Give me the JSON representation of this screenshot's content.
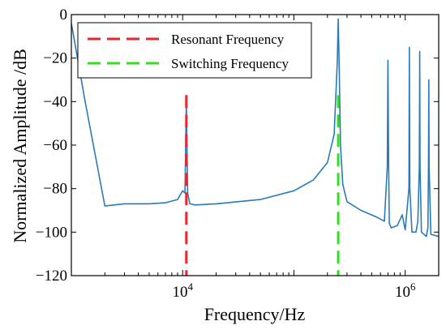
{
  "chart_data": {
    "type": "line",
    "title": "",
    "xlabel": "Frequency/Hz",
    "ylabel": "Normalized Amplitude /dB",
    "xscale": "log",
    "xlim": [
      1000,
      2000000
    ],
    "ylim": [
      -120,
      0
    ],
    "x_ticks": [
      {
        "value": 10000,
        "base": "10",
        "exp": "4"
      },
      {
        "value": 1000000,
        "base": "10",
        "exp": "6"
      }
    ],
    "y_ticks": [
      0,
      -20,
      -40,
      -60,
      -80,
      -100,
      -120
    ],
    "y_tick_labels": [
      "0",
      "−20",
      "−40",
      "−60",
      "−80",
      "−100",
      "−120"
    ],
    "grid": false,
    "legend_position": "top-left",
    "legend": [
      {
        "label": "Resonant Frequency",
        "color": "#e8262b",
        "style": "dashed"
      },
      {
        "label": "Switching Frequency",
        "color": "#33dd22",
        "style": "dashed"
      }
    ],
    "vertical_lines": [
      {
        "name": "Resonant Frequency",
        "x": 10800,
        "color": "#e8262b"
      },
      {
        "name": "Switching Frequency",
        "x": 250000,
        "color": "#33dd22"
      }
    ],
    "series": [
      {
        "color": "#2a7ab8",
        "x": [
          1000,
          1330,
          2000,
          3000,
          5000,
          7000,
          9000,
          10000,
          10500,
          10800,
          11100,
          11600,
          13000,
          20000,
          50000,
          100000,
          150000,
          200000,
          230000,
          245000,
          250000,
          255000,
          262000,
          275000,
          300000,
          400000,
          550000,
          650000,
          690000,
          700000,
          710000,
          720000,
          750000,
          850000,
          940000,
          1000000,
          1080000,
          1090000,
          1100000,
          1150000,
          1250000,
          1300000,
          1340000,
          1350000,
          1360000,
          1400000,
          1550000,
          1600000,
          1620000,
          1630000,
          1640000,
          1700000,
          2000000
        ],
        "y": [
          -4,
          -40,
          -88,
          -87,
          -87,
          -86.5,
          -85,
          -81,
          -82,
          -40,
          -82,
          -87,
          -87.5,
          -87,
          -85,
          -81,
          -76,
          -68,
          -55,
          -22,
          -2,
          -22,
          -60,
          -78,
          -86,
          -90,
          -93,
          -95,
          -70,
          -21,
          -70,
          -96,
          -98,
          -97,
          -92,
          -99,
          -80,
          -15,
          -80,
          -100,
          -100,
          -95,
          -70,
          -17,
          -70,
          -100,
          -102,
          -98,
          -70,
          -30,
          -70,
          -101,
          -102
        ]
      }
    ]
  }
}
